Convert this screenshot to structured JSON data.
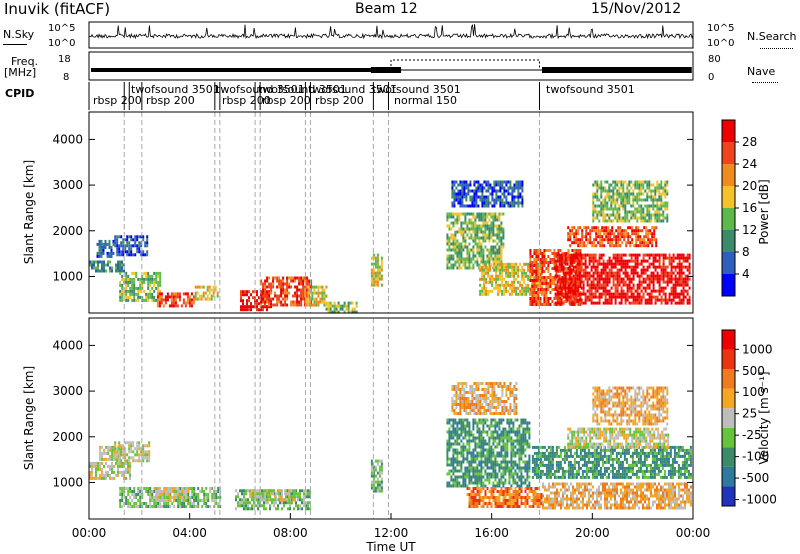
{
  "header": {
    "station": "Inuvik (fitACF)",
    "beam": "Beam 12",
    "date": "15/Nov/2012"
  },
  "top_panels": {
    "nsky_label": "N.Sky",
    "nsky_ticks": [
      "10^5",
      "10^0"
    ],
    "nsearch_label": "N.Search",
    "nsearch_ticks": [
      "10^5",
      "10^0"
    ],
    "freq_label": "Freq.",
    "freq_unit": "[MHz]",
    "freq_ticks": [
      "18",
      "8"
    ],
    "nave_label": "Nave",
    "nave_ticks": [
      "80",
      "0"
    ],
    "cpid_label": "CPID",
    "cpid_entries": [
      {
        "text": "rbsp  200"
      },
      {
        "text": "twofsound 3501"
      },
      {
        "text": "rbsp 200"
      },
      {
        "text": "twofsound 3501"
      },
      {
        "text": "rbsp 200"
      },
      {
        "text": "twofsound 3501"
      },
      {
        "text": "rbsp 200"
      },
      {
        "text": "twofsound 3501"
      },
      {
        "text": "rbsp 200"
      },
      {
        "text": "twofsound 3501"
      },
      {
        "text": "normal 150"
      },
      {
        "text": "twofsound 3501"
      }
    ]
  },
  "chart_data": [
    {
      "type": "heatmap",
      "name": "power",
      "ylabel": "Slant Range [km]",
      "yticks": [
        "1000",
        "2000",
        "3000",
        "4000"
      ],
      "ylim": [
        200,
        4600
      ],
      "xlim": [
        0,
        24
      ],
      "colorbar_label": "Power [dB]",
      "colorbar_ticks": [
        "4",
        "8",
        "12",
        "16",
        "20",
        "24",
        "28"
      ],
      "colors": [
        "#0000ff",
        "#2e5fbf",
        "#3b8a6a",
        "#5fb84a",
        "#f5c22a",
        "#f08c1e",
        "#f0441e",
        "#ee0000"
      ],
      "regions": [
        {
          "t0": 0.0,
          "t1": 1.4,
          "r0": 1150,
          "r1": 1350,
          "level": 2
        },
        {
          "t0": 0.3,
          "t1": 1.0,
          "r0": 1450,
          "r1": 1800,
          "level": 1
        },
        {
          "t0": 1.0,
          "t1": 2.3,
          "r0": 1500,
          "r1": 1900,
          "level": 1
        },
        {
          "t0": 1.2,
          "t1": 2.8,
          "r0": 500,
          "r1": 1100,
          "level": 3
        },
        {
          "t0": 2.7,
          "t1": 4.2,
          "r0": 350,
          "r1": 650,
          "level": 6
        },
        {
          "t0": 4.2,
          "t1": 5.1,
          "r0": 500,
          "r1": 800,
          "level": 4
        },
        {
          "t0": 6.0,
          "t1": 7.2,
          "r0": 300,
          "r1": 700,
          "level": 7
        },
        {
          "t0": 6.8,
          "t1": 8.8,
          "r0": 350,
          "r1": 1000,
          "level": 6
        },
        {
          "t0": 8.6,
          "t1": 9.4,
          "r0": 400,
          "r1": 800,
          "level": 4
        },
        {
          "t0": 9.4,
          "t1": 10.6,
          "r0": 250,
          "r1": 450,
          "level": 3
        },
        {
          "t0": 11.2,
          "t1": 11.6,
          "r0": 800,
          "r1": 1500,
          "level": 4
        },
        {
          "t0": 14.2,
          "t1": 16.5,
          "r0": 1200,
          "r1": 2400,
          "level": 3
        },
        {
          "t0": 14.4,
          "t1": 17.2,
          "r0": 2550,
          "r1": 3100,
          "level": 1
        },
        {
          "t0": 15.5,
          "t1": 18.0,
          "r0": 600,
          "r1": 1300,
          "level": 4
        },
        {
          "t0": 17.5,
          "t1": 19.5,
          "r0": 400,
          "r1": 1600,
          "level": 6
        },
        {
          "t0": 18.5,
          "t1": 23.9,
          "r0": 400,
          "r1": 1500,
          "level": 7
        },
        {
          "t0": 19.0,
          "t1": 22.5,
          "r0": 1700,
          "r1": 2100,
          "level": 6
        },
        {
          "t0": 20.0,
          "t1": 23.0,
          "r0": 2200,
          "r1": 3100,
          "level": 3
        }
      ]
    },
    {
      "type": "heatmap",
      "name": "velocity",
      "ylabel": "Slant Range [km]",
      "yticks": [
        "1000",
        "2000",
        "3000",
        "4000"
      ],
      "ylim": [
        200,
        4600
      ],
      "xlim": [
        0,
        24
      ],
      "xlabel": "Time UT",
      "xticks": [
        "00:00",
        "04:00",
        "08:00",
        "12:00",
        "16:00",
        "20:00",
        "00:00"
      ],
      "colorbar_label": "Velocity [m s⁻¹]",
      "colorbar_ticks": [
        "1000",
        "500",
        "100",
        "25",
        "-25",
        "-100",
        "-500",
        "-1000"
      ],
      "colors": [
        "#2233bb",
        "#2e7a9e",
        "#3b8a6a",
        "#66c43a",
        "#bdbdbd",
        "#f5a623",
        "#f07a1e",
        "#ee3311",
        "#ee0000"
      ],
      "regions": [
        {
          "t0": 0.0,
          "t1": 1.6,
          "r0": 1100,
          "r1": 1450,
          "level": 4
        },
        {
          "t0": 0.4,
          "t1": 1.2,
          "r0": 1500,
          "r1": 1800,
          "level": 4
        },
        {
          "t0": 1.0,
          "t1": 2.4,
          "r0": 1500,
          "r1": 1900,
          "level": 4
        },
        {
          "t0": 1.2,
          "t1": 5.2,
          "r0": 450,
          "r1": 900,
          "level": 3
        },
        {
          "t0": 2.4,
          "t1": 4.0,
          "r0": 600,
          "r1": 900,
          "level": 4
        },
        {
          "t0": 5.8,
          "t1": 8.8,
          "r0": 450,
          "r1": 850,
          "level": 3
        },
        {
          "t0": 6.4,
          "t1": 8.2,
          "r0": 600,
          "r1": 850,
          "level": 4
        },
        {
          "t0": 11.2,
          "t1": 11.6,
          "r0": 800,
          "r1": 1500,
          "level": 3
        },
        {
          "t0": 14.2,
          "t1": 17.5,
          "r0": 900,
          "r1": 2400,
          "level": 2
        },
        {
          "t0": 14.4,
          "t1": 17.0,
          "r0": 2500,
          "r1": 3200,
          "level": 5
        },
        {
          "t0": 15.0,
          "t1": 18.0,
          "r0": 500,
          "r1": 900,
          "level": 6
        },
        {
          "t0": 17.6,
          "t1": 23.9,
          "r0": 1100,
          "r1": 1800,
          "level": 2
        },
        {
          "t0": 18.0,
          "t1": 23.9,
          "r0": 450,
          "r1": 1000,
          "level": 5
        },
        {
          "t0": 19.0,
          "t1": 23.0,
          "r0": 1800,
          "r1": 2200,
          "level": 4
        },
        {
          "t0": 20.0,
          "t1": 23.0,
          "r0": 2300,
          "r1": 3100,
          "level": 5
        }
      ]
    }
  ]
}
